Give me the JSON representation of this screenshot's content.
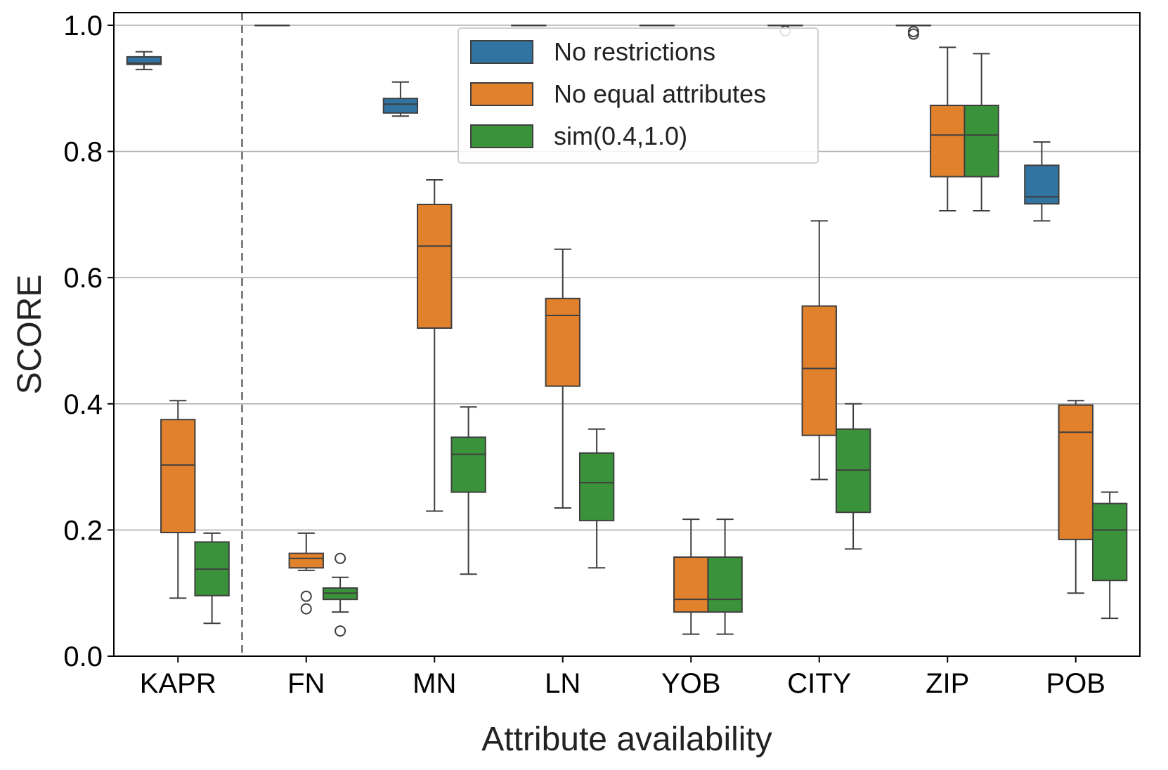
{
  "chart_data": {
    "type": "box",
    "xlabel": "Attribute availability",
    "ylabel": "SCORE",
    "ylim": [
      0.0,
      1.02
    ],
    "yticks": [
      "0.0",
      "0.2",
      "0.4",
      "0.6",
      "0.8",
      "1.0"
    ],
    "ytick_values": [
      0.0,
      0.2,
      0.4,
      0.6,
      0.8,
      1.0
    ],
    "grid": "horizontal",
    "legend_position": "top-center",
    "separator_after_category": "KAPR",
    "categories": [
      "KAPR",
      "FN",
      "MN",
      "LN",
      "YOB",
      "CITY",
      "ZIP",
      "POB"
    ],
    "series": [
      {
        "name": "No restrictions",
        "color": "#3274a1",
        "boxes": [
          {
            "whislo": 0.93,
            "q1": 0.938,
            "med": 0.94,
            "q3": 0.95,
            "whishi": 0.958,
            "fliers": []
          },
          {
            "whislo": 1.0,
            "q1": 1.0,
            "med": 1.0,
            "q3": 1.0,
            "whishi": 1.0,
            "fliers": []
          },
          {
            "whislo": 0.856,
            "q1": 0.861,
            "med": 0.875,
            "q3": 0.884,
            "whishi": 0.91,
            "fliers": []
          },
          {
            "whislo": 1.0,
            "q1": 1.0,
            "med": 1.0,
            "q3": 1.0,
            "whishi": 1.0,
            "fliers": []
          },
          {
            "whislo": 1.0,
            "q1": 1.0,
            "med": 1.0,
            "q3": 1.0,
            "whishi": 1.0,
            "fliers": []
          },
          {
            "whislo": 1.0,
            "q1": 1.0,
            "med": 1.0,
            "q3": 1.0,
            "whishi": 1.0,
            "fliers": [
              0.991
            ]
          },
          {
            "whislo": 1.0,
            "q1": 1.0,
            "med": 1.0,
            "q3": 1.0,
            "whishi": 1.0,
            "fliers": [
              0.986,
              0.99
            ]
          },
          {
            "whislo": 0.69,
            "q1": 0.717,
            "med": 0.728,
            "q3": 0.778,
            "whishi": 0.815,
            "fliers": []
          }
        ]
      },
      {
        "name": "No equal attributes",
        "color": "#e1812c",
        "boxes": [
          {
            "whislo": 0.092,
            "q1": 0.196,
            "med": 0.303,
            "q3": 0.375,
            "whishi": 0.405,
            "fliers": []
          },
          {
            "whislo": 0.136,
            "q1": 0.14,
            "med": 0.155,
            "q3": 0.163,
            "whishi": 0.195,
            "fliers": [
              0.095,
              0.075
            ]
          },
          {
            "whislo": 0.23,
            "q1": 0.52,
            "med": 0.65,
            "q3": 0.716,
            "whishi": 0.755,
            "fliers": []
          },
          {
            "whislo": 0.235,
            "q1": 0.428,
            "med": 0.54,
            "q3": 0.567,
            "whishi": 0.645,
            "fliers": []
          },
          {
            "whislo": 0.035,
            "q1": 0.07,
            "med": 0.09,
            "q3": 0.157,
            "whishi": 0.217,
            "fliers": []
          },
          {
            "whislo": 0.28,
            "q1": 0.35,
            "med": 0.456,
            "q3": 0.555,
            "whishi": 0.69,
            "fliers": []
          },
          {
            "whislo": 0.706,
            "q1": 0.76,
            "med": 0.826,
            "q3": 0.873,
            "whishi": 0.965,
            "fliers": []
          },
          {
            "whislo": 0.1,
            "q1": 0.185,
            "med": 0.355,
            "q3": 0.398,
            "whishi": 0.405,
            "fliers": []
          }
        ]
      },
      {
        "name": "sim(0.4,1.0)",
        "color": "#3a923a",
        "boxes": [
          {
            "whislo": 0.052,
            "q1": 0.096,
            "med": 0.138,
            "q3": 0.181,
            "whishi": 0.195,
            "fliers": []
          },
          {
            "whislo": 0.07,
            "q1": 0.09,
            "med": 0.1,
            "q3": 0.108,
            "whishi": 0.125,
            "fliers": [
              0.155,
              0.04
            ]
          },
          {
            "whislo": 0.13,
            "q1": 0.26,
            "med": 0.32,
            "q3": 0.347,
            "whishi": 0.395,
            "fliers": []
          },
          {
            "whislo": 0.14,
            "q1": 0.215,
            "med": 0.275,
            "q3": 0.322,
            "whishi": 0.36,
            "fliers": []
          },
          {
            "whislo": 0.035,
            "q1": 0.07,
            "med": 0.09,
            "q3": 0.157,
            "whishi": 0.217,
            "fliers": []
          },
          {
            "whislo": 0.17,
            "q1": 0.228,
            "med": 0.295,
            "q3": 0.36,
            "whishi": 0.4,
            "fliers": []
          },
          {
            "whislo": 0.706,
            "q1": 0.76,
            "med": 0.826,
            "q3": 0.873,
            "whishi": 0.955,
            "fliers": []
          },
          {
            "whislo": 0.06,
            "q1": 0.12,
            "med": 0.2,
            "q3": 0.242,
            "whishi": 0.26,
            "fliers": []
          }
        ]
      }
    ]
  }
}
